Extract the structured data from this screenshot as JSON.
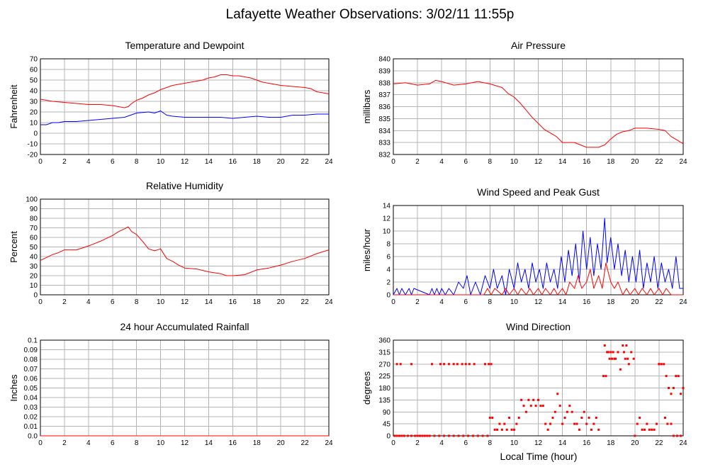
{
  "figure": {
    "title": "Lafayette Weather Observations: 3/02/11 11:55p",
    "xlabel": "Local Time (hour)"
  },
  "colors": {
    "primary": "#ff0000",
    "secondary": "#0000ff",
    "grid": "#b4b4b4",
    "axis": "#000000"
  },
  "chart_data": [
    {
      "type": "line",
      "title": "Temperature and Dewpoint",
      "ylabel": "Fahrenheit",
      "xlim": [
        0,
        24
      ],
      "ylim": [
        -20,
        70
      ],
      "xticks": [
        0,
        2,
        4,
        6,
        8,
        10,
        12,
        14,
        16,
        18,
        20,
        22,
        24
      ],
      "yticks": [
        -20,
        -10,
        0,
        10,
        20,
        30,
        40,
        50,
        60,
        70
      ],
      "grid": true,
      "series": [
        {
          "color": "#ff0000",
          "x": [
            0,
            1,
            2,
            3,
            4,
            5,
            6,
            6.5,
            7,
            7.3,
            7.6,
            8,
            8.5,
            9,
            9.5,
            10,
            10.5,
            11,
            11.5,
            12,
            12.5,
            13,
            13.5,
            14,
            14.5,
            15,
            15.5,
            16,
            16.5,
            17,
            17.5,
            18,
            18.5,
            19,
            19.5,
            20,
            21,
            22,
            22.5,
            23,
            24
          ],
          "values": [
            32,
            30,
            29,
            28,
            27,
            27,
            26,
            25,
            24,
            25,
            28,
            31,
            33,
            36,
            38,
            41,
            43,
            45,
            46,
            47,
            48,
            49,
            50,
            52,
            53,
            55,
            55,
            54,
            54,
            53,
            52,
            50,
            48,
            47,
            46,
            45,
            44,
            43,
            42,
            39,
            37
          ]
        },
        {
          "color": "#0000ff",
          "x": [
            0,
            0.5,
            1,
            1.5,
            2,
            3,
            4,
            5,
            6,
            7,
            7.5,
            8,
            9,
            9.5,
            10,
            10.5,
            11,
            12,
            13,
            14,
            15,
            16,
            17,
            18,
            19,
            20,
            21,
            22,
            23,
            24
          ],
          "values": [
            8,
            8,
            10,
            10,
            11,
            11,
            12,
            13,
            14,
            15,
            17,
            19,
            20,
            19,
            21,
            17,
            16,
            15,
            15,
            15,
            15,
            14,
            15,
            16,
            15,
            15,
            17,
            17,
            18,
            18
          ]
        }
      ]
    },
    {
      "type": "line",
      "title": "Air Pressure",
      "ylabel": "millibars",
      "xlim": [
        0,
        24
      ],
      "ylim": [
        832,
        840
      ],
      "xticks": [
        0,
        2,
        4,
        6,
        8,
        10,
        12,
        14,
        16,
        18,
        20,
        22,
        24
      ],
      "yticks": [
        832,
        833,
        834,
        835,
        836,
        837,
        838,
        839,
        840
      ],
      "grid": true,
      "series": [
        {
          "color": "#ff0000",
          "x": [
            0,
            1,
            2,
            3,
            3.5,
            4,
            5,
            6,
            7,
            8,
            9,
            9.5,
            10,
            10.5,
            11,
            11.5,
            12,
            12.5,
            13,
            13.5,
            14,
            15,
            15.5,
            16,
            16.5,
            17,
            17.5,
            18,
            18.5,
            19,
            19.5,
            20,
            21,
            22,
            22.5,
            23,
            23.5,
            24
          ],
          "values": [
            837.9,
            838,
            837.8,
            837.9,
            838.2,
            838.1,
            837.8,
            837.9,
            838.1,
            837.9,
            837.6,
            837.1,
            836.8,
            836.3,
            835.7,
            835.1,
            834.6,
            834.1,
            833.8,
            833.5,
            833,
            833,
            832.8,
            832.6,
            832.6,
            832.6,
            832.8,
            833.3,
            833.7,
            833.9,
            834,
            834.2,
            834.2,
            834.1,
            834,
            833.5,
            833.2,
            832.9
          ]
        }
      ]
    },
    {
      "type": "line",
      "title": "Relative Humidity",
      "ylabel": "Percent",
      "xlim": [
        0,
        24
      ],
      "ylim": [
        0,
        100
      ],
      "xticks": [
        0,
        2,
        4,
        6,
        8,
        10,
        12,
        14,
        16,
        18,
        20,
        22,
        24
      ],
      "yticks": [
        0,
        10,
        20,
        30,
        40,
        50,
        60,
        70,
        80,
        90,
        100
      ],
      "grid": true,
      "series": [
        {
          "color": "#ff0000",
          "x": [
            0,
            0.5,
            1,
            1.5,
            2,
            3,
            4,
            5,
            6,
            6.5,
            7,
            7.3,
            7.6,
            8,
            8.5,
            9,
            9.5,
            10,
            10.5,
            11,
            11.5,
            12,
            13,
            14,
            15,
            15.5,
            16,
            17,
            18,
            19,
            20,
            21,
            22,
            23,
            24
          ],
          "values": [
            36,
            39,
            42,
            44,
            47,
            47,
            51,
            56,
            62,
            66,
            69,
            71,
            66,
            63,
            56,
            48,
            46,
            48,
            38,
            35,
            31,
            28,
            27,
            24,
            22,
            20,
            20,
            21,
            26,
            28,
            31,
            35,
            38,
            43,
            47
          ]
        }
      ]
    },
    {
      "type": "line",
      "title": "Wind Speed and Peak Gust",
      "ylabel": "miles/hour",
      "xlim": [
        0,
        24
      ],
      "ylim": [
        0,
        14
      ],
      "xticks": [
        0,
        2,
        4,
        6,
        8,
        10,
        12,
        14,
        16,
        18,
        20,
        22,
        24
      ],
      "yticks": [
        0,
        2,
        4,
        6,
        8,
        10,
        12,
        14
      ],
      "grid": true,
      "series": [
        {
          "color": "#0000ff",
          "x": [
            0,
            0.3,
            0.5,
            0.7,
            1.0,
            1.3,
            1.5,
            1.7,
            3.0,
            3.2,
            3.4,
            3.6,
            3.8,
            4.0,
            4.3,
            4.6,
            5.0,
            5.4,
            5.8,
            6.1,
            6.4,
            6.8,
            7.2,
            7.6,
            8.0,
            8.3,
            8.6,
            9.0,
            9.3,
            9.6,
            10.0,
            10.3,
            10.6,
            10.9,
            11.2,
            11.5,
            11.8,
            12.1,
            12.4,
            12.7,
            13.0,
            13.3,
            13.6,
            13.9,
            14.2,
            14.5,
            14.8,
            15.1,
            15.4,
            15.7,
            16.0,
            16.3,
            16.6,
            16.9,
            17.2,
            17.5,
            17.7,
            18.0,
            18.3,
            18.6,
            18.9,
            19.2,
            19.5,
            19.8,
            20.1,
            20.4,
            20.7,
            21.0,
            21.3,
            21.6,
            21.9,
            22.2,
            22.5,
            22.8,
            23.1,
            23.4,
            23.7,
            24.0
          ],
          "values": [
            0,
            1,
            0,
            1,
            0,
            1,
            0,
            1,
            0,
            1,
            0,
            1,
            0,
            1,
            0,
            1,
            0,
            2,
            1,
            3,
            0,
            2,
            0,
            3,
            1,
            4,
            1,
            3,
            0,
            4,
            1,
            5,
            2,
            4,
            1,
            5,
            2,
            4,
            1,
            5,
            2,
            4,
            1,
            6,
            2,
            7,
            3,
            8,
            2,
            10,
            4,
            9,
            3,
            8,
            4,
            12,
            5,
            9,
            4,
            8,
            3,
            7,
            2,
            6,
            2,
            7,
            1,
            5,
            2,
            6,
            1,
            5,
            2,
            4,
            1,
            6,
            1,
            1
          ]
        },
        {
          "color": "#ff0000",
          "x": [
            0,
            7.5,
            7.8,
            8.1,
            8.4,
            9.0,
            9.3,
            9.6,
            10.0,
            10.3,
            10.6,
            11.0,
            11.3,
            11.6,
            12.0,
            12.3,
            12.6,
            13.0,
            13.3,
            13.6,
            14.0,
            14.3,
            14.6,
            15.0,
            15.3,
            15.6,
            16.0,
            16.3,
            16.6,
            17.0,
            17.3,
            17.6,
            18.0,
            18.3,
            18.6,
            19.0,
            19.3,
            19.6,
            20.0,
            20.3,
            20.6,
            21.0,
            21.3,
            21.6,
            22.0,
            22.3,
            22.6,
            23.0,
            24.0
          ],
          "values": [
            0,
            0,
            1,
            0,
            1,
            0,
            1,
            0,
            1,
            0,
            1,
            0,
            1,
            0,
            1,
            0,
            1,
            0,
            1,
            0,
            1,
            0,
            2,
            1,
            3,
            1,
            2,
            4,
            1,
            3,
            1,
            5,
            2,
            1,
            2,
            0,
            1,
            0,
            1,
            0,
            1,
            0,
            1,
            0,
            1,
            0,
            1,
            0,
            0
          ]
        }
      ]
    },
    {
      "type": "line",
      "title": "24 hour Accumulated Rainfall",
      "ylabel": "Inches",
      "xlim": [
        0,
        24
      ],
      "ylim": [
        0,
        0.1
      ],
      "xticks": [
        0,
        2,
        4,
        6,
        8,
        10,
        12,
        14,
        16,
        18,
        20,
        22,
        24
      ],
      "yticks": [
        0.0,
        0.01,
        0.02,
        0.03,
        0.04,
        0.05,
        0.06,
        0.07,
        0.08,
        0.09,
        0.1
      ],
      "yticklabels": [
        "0.0",
        "0.01",
        "0.02",
        "0.03",
        "0.04",
        "0.05",
        "0.06",
        "0.07",
        "0.08",
        "0.09",
        "0.1"
      ],
      "grid": true,
      "series": [
        {
          "color": "#ff0000",
          "x": [
            0,
            24
          ],
          "values": [
            0,
            0
          ]
        }
      ]
    },
    {
      "type": "scatter",
      "title": "Wind Direction",
      "ylabel": "degrees",
      "xlabel": "Local Time (hour)",
      "xlim": [
        0,
        24
      ],
      "ylim": [
        0,
        360
      ],
      "xticks": [
        0,
        2,
        4,
        6,
        8,
        10,
        12,
        14,
        16,
        18,
        20,
        22,
        24
      ],
      "yticks": [
        0,
        45,
        90,
        135,
        180,
        225,
        270,
        315,
        360
      ],
      "grid": true,
      "series": [
        {
          "color": "#ff0000",
          "x": [
            0.1,
            0.3,
            0.5,
            0.7,
            0.9,
            1.2,
            1.5,
            1.8,
            2.0,
            2.2,
            2.4,
            2.6,
            2.8,
            3.0,
            3.4,
            3.8,
            4.2,
            4.6,
            5.0,
            5.4,
            5.8,
            6.2,
            6.6,
            7.0,
            7.4,
            7.8,
            0.3,
            0.6,
            1.5,
            3.2,
            3.9,
            4.2,
            4.6,
            5.0,
            5.3,
            5.7,
            6.0,
            6.3,
            6.7,
            7.6,
            7.9,
            8.1,
            8.0,
            8.2,
            8.4,
            8.6,
            8.8,
            9.0,
            9.2,
            9.4,
            9.6,
            9.8,
            10.0,
            10.2,
            10.4,
            10.6,
            10.8,
            11.0,
            11.2,
            11.4,
            11.6,
            11.8,
            12.0,
            12.2,
            12.4,
            12.6,
            12.8,
            13.0,
            13.2,
            13.4,
            13.6,
            13.8,
            14.0,
            14.2,
            14.4,
            14.6,
            14.8,
            15.0,
            15.2,
            15.4,
            15.6,
            15.8,
            16.0,
            16.2,
            16.4,
            16.6,
            16.8,
            17.0,
            17.4,
            17.5,
            17.6,
            17.7,
            17.8,
            17.9,
            18.0,
            18.1,
            18.2,
            18.3,
            18.4,
            18.6,
            18.8,
            19.0,
            19.1,
            19.2,
            19.3,
            19.4,
            19.5,
            19.7,
            19.9,
            20.0,
            20.2,
            20.4,
            20.6,
            20.8,
            21.0,
            21.2,
            21.4,
            21.6,
            21.8,
            22.0,
            22.2,
            22.4,
            22.6,
            22.8,
            23.0,
            23.2,
            23.4,
            23.6,
            23.8,
            24.0,
            22.0,
            22.5,
            22.7,
            23.0,
            23.2,
            23.5,
            23.8
          ],
          "values": [
            0,
            0,
            0,
            0,
            0,
            0,
            0,
            0,
            0,
            0,
            0,
            0,
            0,
            0,
            0,
            0,
            0,
            0,
            0,
            0,
            0,
            0,
            0,
            0,
            0,
            0,
            270,
            270,
            270,
            270,
            270,
            270,
            270,
            270,
            270,
            270,
            270,
            270,
            270,
            270,
            270,
            270,
            68,
            68,
            23,
            23,
            45,
            23,
            45,
            23,
            68,
            23,
            23,
            45,
            68,
            135,
            113,
            90,
            135,
            113,
            135,
            113,
            135,
            113,
            113,
            45,
            23,
            45,
            68,
            90,
            158,
            113,
            45,
            68,
            90,
            113,
            90,
            45,
            45,
            23,
            68,
            90,
            45,
            68,
            23,
            45,
            68,
            23,
            225,
            340,
            225,
            315,
            315,
            290,
            315,
            290,
            315,
            290,
            290,
            315,
            250,
            340,
            315,
            290,
            340,
            290,
            270,
            315,
            290,
            0,
            45,
            68,
            23,
            23,
            45,
            23,
            23,
            23,
            45,
            270,
            270,
            270,
            225,
            180,
            158,
            180,
            225,
            225,
            158,
            180,
            270,
            68,
            45,
            45,
            0,
            0,
            0
          ]
        }
      ]
    }
  ]
}
